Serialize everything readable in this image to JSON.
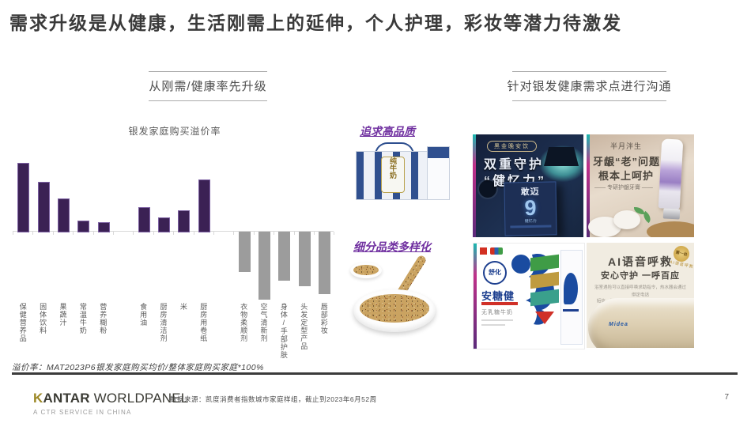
{
  "slide": {
    "title": "需求升级是从健康，生活刚需上的延伸，个人护理，彩妆等潜力待激发",
    "page_number": "7"
  },
  "left_section": {
    "header": "从刚需/健康率先升级"
  },
  "right_section": {
    "header": "针对银发健康需求点进行沟通"
  },
  "chart_data": {
    "type": "bar",
    "title": "银发家庭购买溢价率",
    "categories": [
      "保健营养品",
      "固体饮料",
      "果蔬汁",
      "常温牛奶",
      "营养糊粉",
      "食用油",
      "厨房清洁剂",
      "米",
      "厨房用卷纸",
      "衣物柔顺剂",
      "空气清新剂",
      "身体/手部护肤",
      "头发定型产品",
      "唇部彩妆"
    ],
    "values": [
      40,
      29,
      19,
      6,
      5,
      14,
      8,
      12,
      30,
      -23,
      -39,
      -28,
      -31,
      -36
    ],
    "unit": "%",
    "value_labels_shown": false,
    "gaps_after": [
      4,
      8
    ],
    "positive_color": "#3b2154",
    "positive_border": "#7e62a4",
    "negative_color": "#9c9c9c",
    "axis_color": "#d9d9d9",
    "xlabel": "",
    "ylabel": "",
    "grid": false,
    "legend": "none",
    "note": "no numeric data labels in source; values estimated from bar heights"
  },
  "middle": {
    "callout1": "追求高品质",
    "callout2": "细分品类多样化",
    "milk_label": "纯牛奶"
  },
  "ads": {
    "night_drink": {
      "badge": "黑金晚安饮",
      "headline1": "双重守护",
      "headline2": "“健忆力”",
      "product_name": "敢迈",
      "product_number": "9",
      "product_sub": "健忆力"
    },
    "toothpaste": {
      "brand": "半月泮生",
      "headline1": "牙龈“老”问题",
      "headline2": "根本上呵护",
      "subline": "—— 专研护龈牙膏 ——"
    },
    "milk_sugar": {
      "brand": "舒化",
      "product": "安糖健",
      "subline": "无乳糖牛奶"
    },
    "water_heater": {
      "badge_top": "第一台",
      "badge_sub": "AI语音呼救",
      "headline": "AI语音呼救",
      "subheadline": "安心守护 一呼百应",
      "body1": "浴室遇险可以直接呼唤求助指令，热水器会通过绑定电话",
      "body2": "短信、美居APP联系紧急联系人，家人及时知晓，即刻响应",
      "logo": "Midea"
    }
  },
  "footnote": "溢价率：MAT2023P6银发家庭购买均价/整体家庭购买家庭*100%",
  "footer": {
    "logo_k": "K",
    "logo_bold": "ANTAR",
    "logo_light": " WORLDPANEL",
    "logo_sub": "A CTR SERVICE IN CHINA",
    "source": "数据来源：凯度消费者指数城市家庭样组，截止到2023年6月52周"
  }
}
